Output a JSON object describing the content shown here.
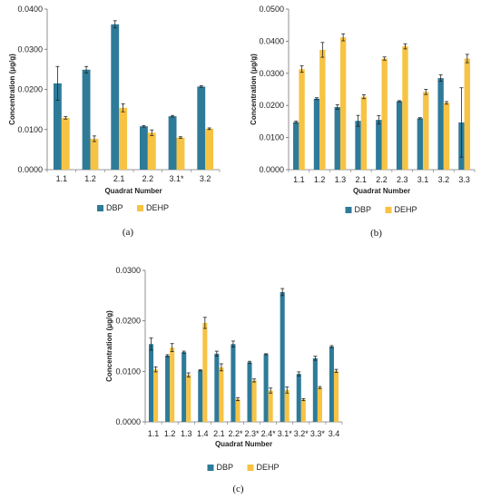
{
  "colors": {
    "DBP": "#2e7b99",
    "DEHP": "#f7c344"
  },
  "chart_data": [
    {
      "type": "bar",
      "panel_label": "(a)",
      "xlabel": "Quadrat Number",
      "ylabel": "Concentration (μg/g)",
      "ylim": [
        0,
        0.04
      ],
      "yticks": [
        "0.0000",
        "0.0100",
        "0.0200",
        "0.0300",
        "0.0400"
      ],
      "categories": [
        "1.1",
        "1.2",
        "2.1",
        "2.2",
        "3.1*",
        "3.2"
      ],
      "legend_position": "bottom",
      "series": [
        {
          "name": "DBP",
          "values": [
            0.0215,
            0.0249,
            0.0362,
            0.0108,
            0.0133,
            0.0207
          ],
          "errors": [
            0.0042,
            0.0008,
            0.0009,
            0.0002,
            0.0002,
            0.0002
          ]
        },
        {
          "name": "DEHP",
          "values": [
            0.0129,
            0.0077,
            0.0154,
            0.0092,
            0.008,
            0.0102
          ],
          "errors": [
            0.0003,
            0.0007,
            0.001,
            0.0007,
            0.0002,
            0.0002
          ]
        }
      ]
    },
    {
      "type": "bar",
      "panel_label": "(b)",
      "xlabel": "Quadrat Number",
      "ylabel": "Concentration (μg/g)",
      "ylim": [
        0,
        0.05
      ],
      "yticks": [
        "0.0000",
        "0.0100",
        "0.0200",
        "0.0300",
        "0.0400",
        "0.0500"
      ],
      "categories": [
        "1.1",
        "1.2",
        "1.3",
        "2.1",
        "2.2",
        "2.3",
        "3.1",
        "3.2",
        "3.3"
      ],
      "legend_position": "bottom",
      "series": [
        {
          "name": "DBP",
          "values": [
            0.0148,
            0.0221,
            0.0195,
            0.0152,
            0.0155,
            0.0213,
            0.016,
            0.0285,
            0.0147
          ],
          "errors": [
            0.0003,
            0.0003,
            0.0007,
            0.0017,
            0.0013,
            0.0002,
            0.0002,
            0.001,
            0.0108
          ]
        },
        {
          "name": "DEHP",
          "values": [
            0.0313,
            0.0373,
            0.0412,
            0.0227,
            0.0346,
            0.0384,
            0.0242,
            0.0208,
            0.0346
          ],
          "errors": [
            0.001,
            0.0023,
            0.0011,
            0.0006,
            0.0005,
            0.0008,
            0.0008,
            0.0004,
            0.0013
          ]
        }
      ]
    },
    {
      "type": "bar",
      "panel_label": "(c)",
      "xlabel": "Quadrat Number",
      "ylabel": "Concentration (μg/g)",
      "ylim": [
        0,
        0.03
      ],
      "yticks": [
        "0.0000",
        "0.0100",
        "0.0200",
        "0.0300"
      ],
      "categories": [
        "1.1",
        "1.2",
        "1.3",
        "1.4",
        "2.1",
        "2.2*",
        "2.3*",
        "2.4*",
        "3.1*",
        "3.2*",
        "3.3*",
        "3.4"
      ],
      "legend_position": "bottom",
      "series": [
        {
          "name": "DBP",
          "values": [
            0.0154,
            0.0131,
            0.0138,
            0.0102,
            0.0135,
            0.0154,
            0.0118,
            0.0134,
            0.0257,
            0.0095,
            0.0126,
            0.0149
          ],
          "errors": [
            0.0012,
            0.0002,
            0.0002,
            0.0001,
            0.0005,
            0.0006,
            0.0002,
            0.0001,
            0.0007,
            0.0004,
            0.0004,
            0.0002
          ]
        },
        {
          "name": "DEHP",
          "values": [
            0.0104,
            0.0147,
            0.0093,
            0.0196,
            0.0108,
            0.0045,
            0.0082,
            0.0062,
            0.0063,
            0.0044,
            0.0068,
            0.0101
          ],
          "errors": [
            0.0005,
            0.0008,
            0.0004,
            0.0011,
            0.0007,
            0.0003,
            0.0003,
            0.0005,
            0.0006,
            0.0002,
            0.0002,
            0.0003
          ]
        }
      ]
    }
  ]
}
